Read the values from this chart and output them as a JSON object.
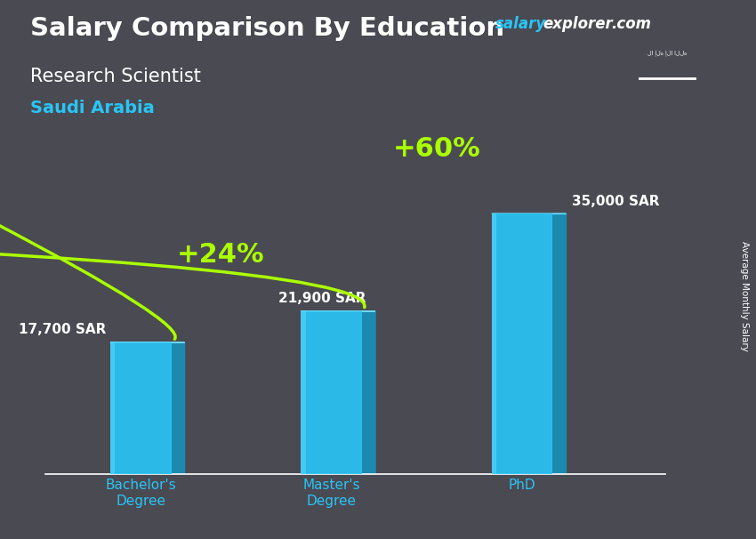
{
  "title": "Salary Comparison By Education",
  "subtitle": "Research Scientist",
  "country": "Saudi Arabia",
  "categories": [
    "Bachelor's\nDegree",
    "Master's\nDegree",
    "PhD"
  ],
  "values": [
    17700,
    21900,
    35000
  ],
  "value_labels": [
    "17,700 SAR",
    "21,900 SAR",
    "35,000 SAR"
  ],
  "pct_labels": [
    "+24%",
    "+60%"
  ],
  "bar_color_main": "#29C5F6",
  "bar_color_dark": "#1A8DB5",
  "bar_color_light": "#55D8FF",
  "bar_color_top": "#70E0FF",
  "background_color": "#4a4a52",
  "title_color": "#ffffff",
  "subtitle_color": "#ffffff",
  "country_color": "#29C5F6",
  "value_label_color": "#ffffff",
  "pct_color": "#aaff00",
  "arrow_color": "#aaff00",
  "right_label": "Average Monthly Salary",
  "ylim": [
    0,
    42000
  ],
  "bar_width": 0.32,
  "x_positions": [
    0.55,
    1.55,
    2.55
  ],
  "xlim": [
    0.05,
    3.3
  ],
  "website_salary_color": "#29C5F6",
  "website_rest_color": "#ffffff",
  "flag_green": "#2d8a2d"
}
